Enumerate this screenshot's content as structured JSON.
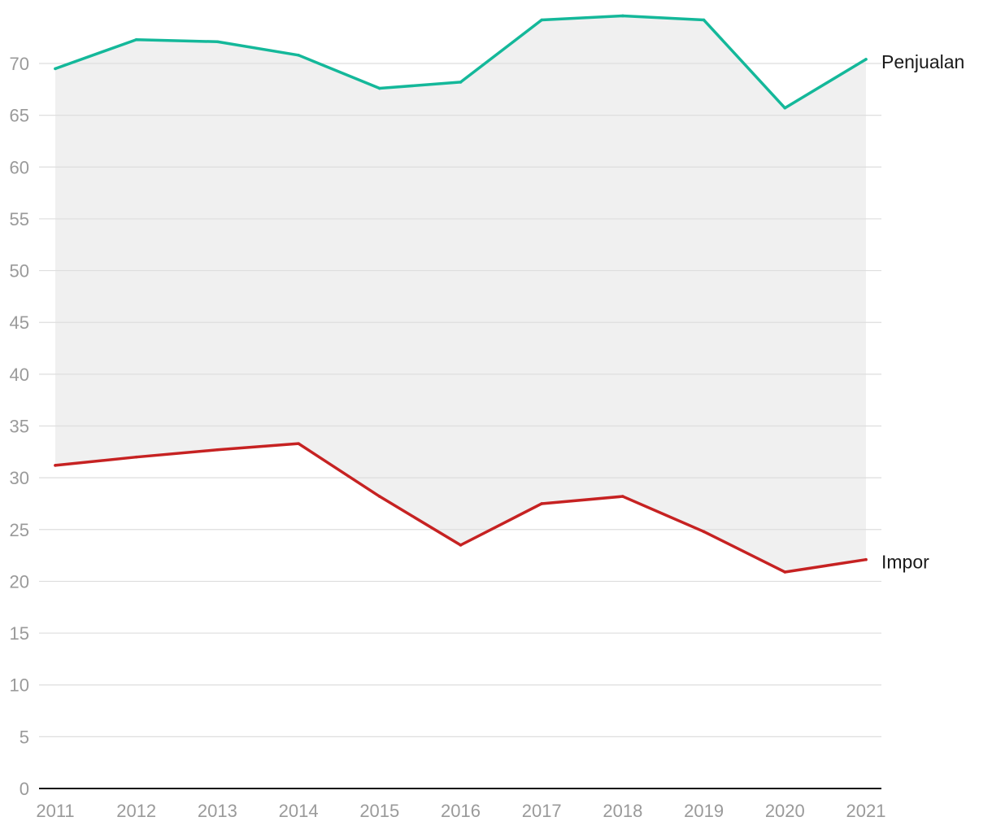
{
  "chart_data": {
    "type": "line",
    "title": "",
    "xlabel": "",
    "ylabel": "",
    "x": [
      "2011",
      "2012",
      "2013",
      "2014",
      "2015",
      "2016",
      "2017",
      "2018",
      "2019",
      "2020",
      "2021"
    ],
    "ylim": [
      0,
      75
    ],
    "yticks": [
      "0",
      "5",
      "10",
      "15",
      "20",
      "25",
      "30",
      "35",
      "40",
      "45",
      "50",
      "55",
      "60",
      "65",
      "70"
    ],
    "grid": true,
    "legend": "inline-right",
    "fill_between": {
      "color": "#f0f0f0"
    },
    "series": [
      {
        "name": "Penjualan",
        "color": "#14b89a",
        "values": [
          69.5,
          72.3,
          72.1,
          70.8,
          67.6,
          68.2,
          74.2,
          74.6,
          74.2,
          65.7,
          70.4
        ]
      },
      {
        "name": "Impor",
        "color": "#c62222",
        "values": [
          31.2,
          32.0,
          32.7,
          33.3,
          28.2,
          23.5,
          27.5,
          28.2,
          24.8,
          20.9,
          22.1
        ]
      }
    ]
  }
}
